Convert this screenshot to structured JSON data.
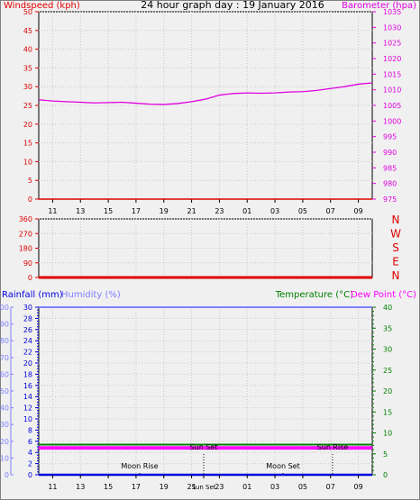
{
  "title": "24 hour graph day : 19 January 2016",
  "colors": {
    "background": "#f0f0f0",
    "plot_background": "#f0f0f0",
    "grid": "#c8c8c8",
    "axis": "#000000",
    "wind": "#e00000",
    "barometer": "#e000e0",
    "rainfall": "#0000e0",
    "humidity": "#8080ff",
    "temperature": "#008000",
    "dewpoint": "#ff00ff",
    "frame": "#000000"
  },
  "chart_data": [
    {
      "type": "line",
      "name": "wind-barometer",
      "x_ticks": [
        "11",
        "13",
        "15",
        "17",
        "19",
        "21",
        "23",
        "01",
        "03",
        "05",
        "07",
        "09"
      ],
      "left_axis": {
        "label": "Windspeed (kph)",
        "ticks": [
          0,
          5,
          10,
          15,
          20,
          25,
          30,
          35,
          40,
          45,
          50
        ],
        "range": [
          0,
          50
        ]
      },
      "right_axis": {
        "label": "Barometer (hpa)",
        "ticks": [
          975,
          980,
          985,
          990,
          995,
          1000,
          1005,
          1010,
          1015,
          1020,
          1025,
          1030,
          1035
        ],
        "range": [
          975,
          1035
        ]
      },
      "series": [
        {
          "axis": "left",
          "color_key": "wind",
          "x": [
            0,
            24
          ],
          "y": [
            0,
            0
          ]
        },
        {
          "axis": "right",
          "color_key": "barometer",
          "x": [
            0,
            1,
            2,
            3,
            4,
            5,
            6,
            7,
            8,
            9,
            10,
            11,
            12,
            13,
            14,
            15,
            16,
            17,
            18,
            19,
            20,
            21,
            22,
            23,
            24
          ],
          "y": [
            1006.8,
            1006.4,
            1006.2,
            1006.0,
            1005.8,
            1005.9,
            1006.0,
            1005.7,
            1005.4,
            1005.3,
            1005.6,
            1006.2,
            1007.0,
            1008.3,
            1008.8,
            1009.0,
            1008.9,
            1009.0,
            1009.3,
            1009.4,
            1009.8,
            1010.4,
            1011.0,
            1011.8,
            1012.2
          ]
        }
      ],
      "grid": true
    },
    {
      "type": "line",
      "name": "wind-direction",
      "x_ticks": [
        "11",
        "13",
        "15",
        "17",
        "19",
        "21",
        "23",
        "01",
        "03",
        "05",
        "07",
        "09"
      ],
      "left_axis": {
        "ticks": [
          0,
          90,
          180,
          270,
          360
        ],
        "range": [
          0,
          360
        ]
      },
      "compass_labels": [
        "N",
        "W",
        "S",
        "E",
        "N"
      ],
      "series": [
        {
          "axis": "left",
          "color_key": "wind",
          "x": [
            0,
            24
          ],
          "y": [
            0,
            0
          ]
        }
      ],
      "grid": true
    },
    {
      "type": "line",
      "name": "rain-humidity-temperature",
      "x_ticks": [
        "11",
        "13",
        "15",
        "17",
        "19",
        "21",
        "Sun Set",
        "23",
        "01",
        "03",
        "05",
        "07",
        "09"
      ],
      "left_axis_rain": {
        "label": "Rainfall (mm)",
        "ticks": [
          0,
          2,
          4,
          6,
          8,
          10,
          12,
          14,
          16,
          18,
          20,
          22,
          24,
          26,
          28,
          30
        ],
        "range": [
          0,
          30
        ]
      },
      "left_axis_humidity": {
        "label": "Humidity (%)",
        "ticks": [
          0,
          10,
          20,
          30,
          40,
          50,
          60,
          70,
          80,
          90,
          100
        ],
        "range": [
          0,
          100
        ]
      },
      "right_axis": {
        "ticks": [
          0,
          5,
          10,
          15,
          20,
          25,
          30,
          35,
          40
        ],
        "range": [
          0,
          40
        ]
      },
      "legend": {
        "temperature": "Temperature (°C)",
        "dewpoint": "Dew Point (°C)"
      },
      "series": [
        {
          "axis": "rain",
          "color_key": "rainfall",
          "x": [
            0,
            24
          ],
          "y": [
            0,
            0
          ]
        },
        {
          "axis": "humidity",
          "color_key": "humidity",
          "x": [
            0,
            24
          ],
          "y": [
            100,
            100
          ]
        },
        {
          "axis": "temp",
          "color_key": "temperature",
          "x": [
            0,
            24
          ],
          "y": [
            7.2,
            7.2
          ]
        },
        {
          "axis": "temp",
          "color_key": "dewpoint",
          "x": [
            0,
            24
          ],
          "y": [
            6.6,
            6.6
          ]
        },
        {
          "axis": "temp",
          "color_key": "dewpoint",
          "x": [
            0,
            24
          ],
          "y": [
            6.2,
            6.2
          ]
        }
      ],
      "events": [
        {
          "label": "Moon Rise",
          "x": 15.5
        },
        {
          "label": "Sun Set",
          "x": 15.6
        },
        {
          "label": "Moon Set",
          "x": 3.3
        },
        {
          "label": "Sun Rise",
          "x": 6.3
        }
      ],
      "grid": true
    }
  ]
}
